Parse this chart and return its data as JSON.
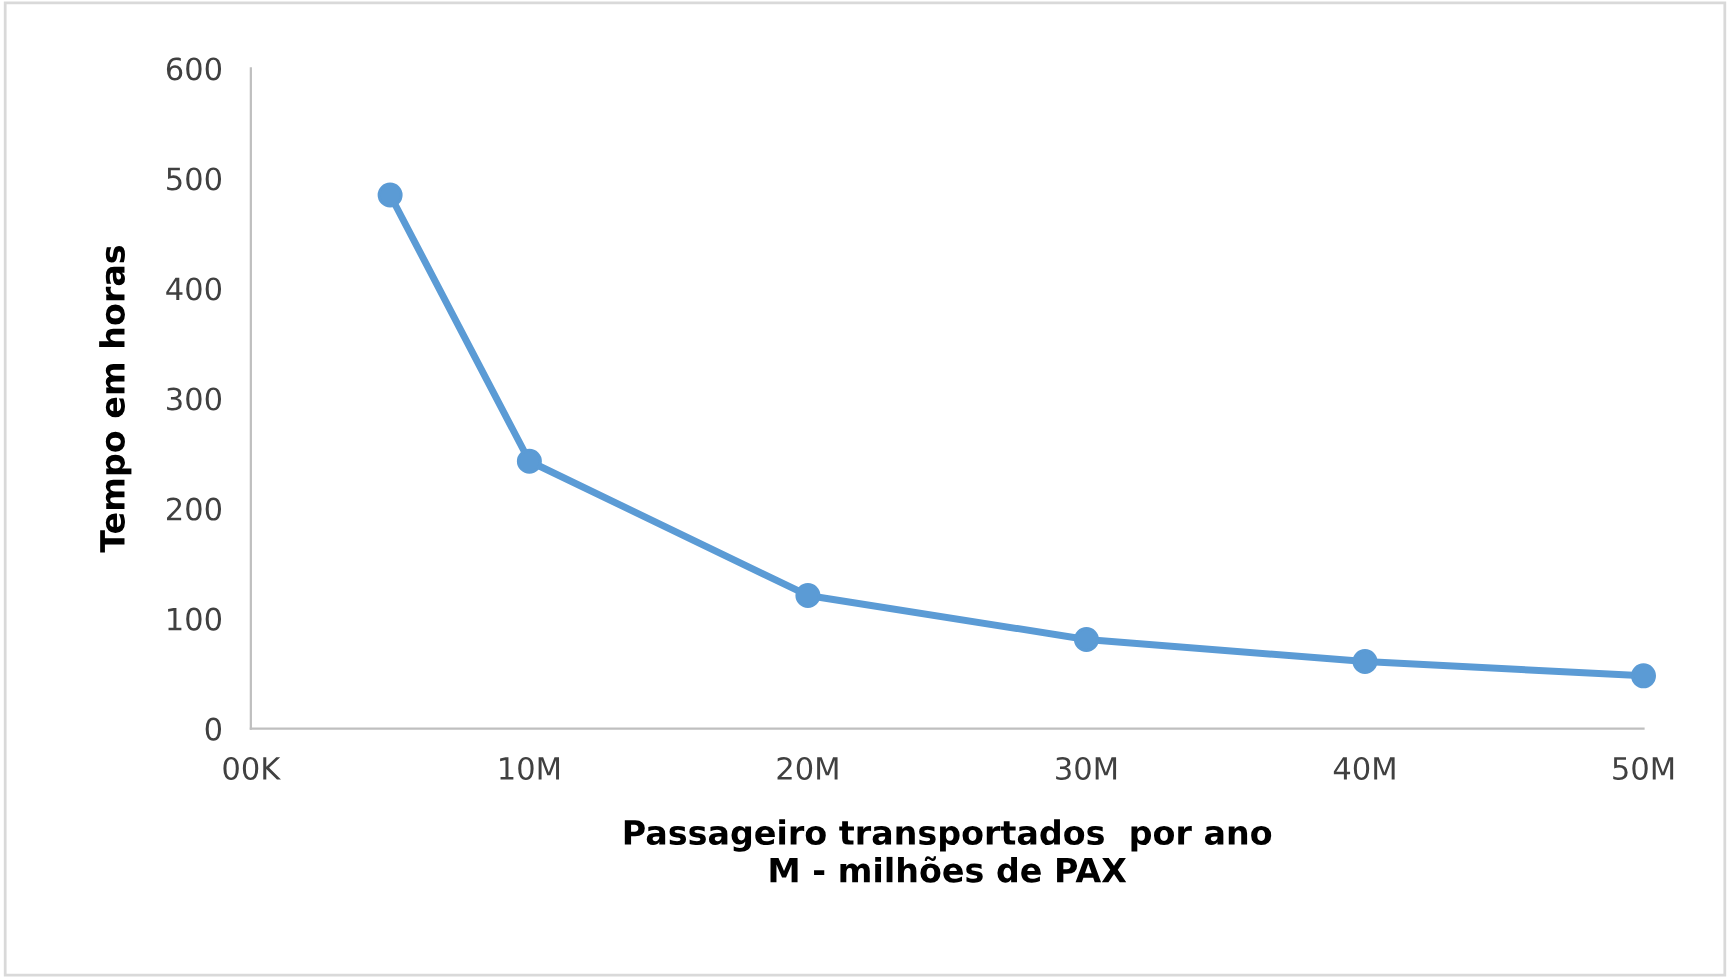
{
  "chart_data": {
    "type": "line",
    "xlabel": "Passageiro transportados  por ano\nM - milhões de PAX",
    "ylabel": "Tempo em horas",
    "x": [
      5,
      10,
      20,
      30,
      40,
      50
    ],
    "series": [
      {
        "color": "#5b9bd5",
        "values": [
          485,
          243,
          121,
          81,
          61,
          48
        ]
      }
    ],
    "xlim": [
      0,
      50
    ],
    "xticks": [
      {
        "value": 0,
        "label": "00K"
      },
      {
        "value": 10,
        "label": "10M"
      },
      {
        "value": 20,
        "label": "20M"
      },
      {
        "value": 30,
        "label": "30M"
      },
      {
        "value": 40,
        "label": "40M"
      },
      {
        "value": 50,
        "label": "50M"
      }
    ],
    "ylim": [
      0,
      600
    ],
    "yticks": [
      0,
      100,
      200,
      300,
      400,
      500,
      600
    ],
    "marker": "circle",
    "line_style": "solid",
    "grid": false,
    "legend": false
  }
}
